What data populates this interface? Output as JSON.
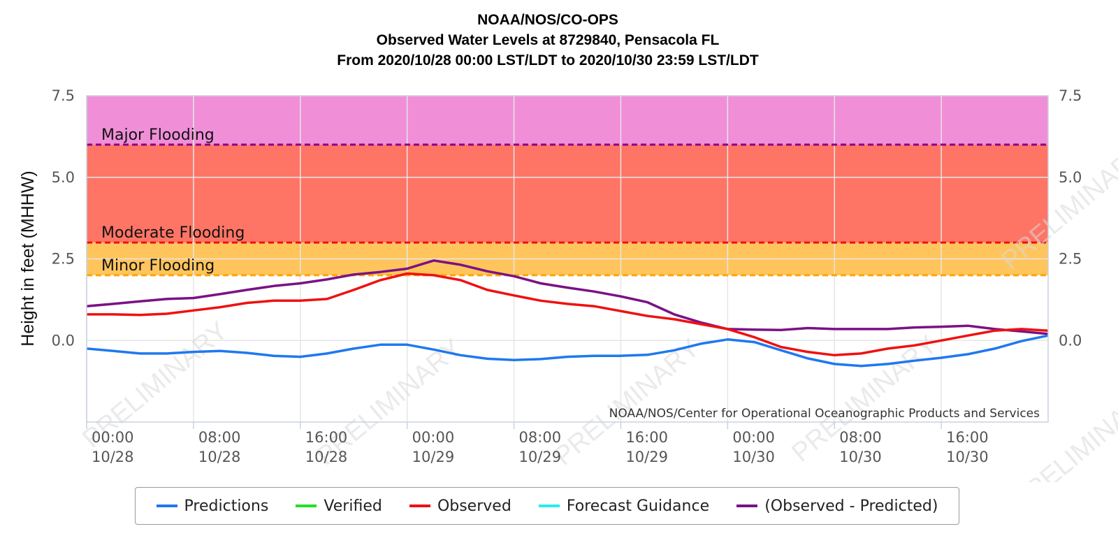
{
  "titles": [
    "NOAA/NOS/CO-OPS",
    "Observed Water Levels at 8729840, Pensacola FL",
    "From 2020/10/28 00:00 LST/LDT to 2020/10/30 23:59 LST/LDT"
  ],
  "credit": "NOAA/NOS/Center for Operational Oceanographic Products and Services",
  "watermark": "PRELIMINARY",
  "colors": {
    "predictions": "#1f78f0",
    "verified": "#22e022",
    "observed": "#f01010",
    "forecast": "#22eef0",
    "difference": "#7a1285",
    "major_band": "#f08fd8",
    "moderate_band": "#ff7565",
    "minor_band": "#ffc55c",
    "major_line": "#8b008b",
    "moderate_line": "#ee1111",
    "minor_line": "#ffa500"
  },
  "legend": [
    {
      "key": "predictions",
      "label": "Predictions"
    },
    {
      "key": "verified",
      "label": "Verified"
    },
    {
      "key": "observed",
      "label": "Observed"
    },
    {
      "key": "forecast",
      "label": "Forecast Guidance"
    },
    {
      "key": "difference",
      "label": "(Observed - Predicted)"
    }
  ],
  "chart_data": {
    "type": "line",
    "ylabel": "Height in feet (MHHW)",
    "y_ticks": [
      "7.5",
      "5.0",
      "2.5",
      "0.0"
    ],
    "y_tick_values": [
      7.5,
      5.0,
      2.5,
      0.0
    ],
    "ylim": [
      -2.5,
      7.5
    ],
    "x_hours_range": [
      0,
      72
    ],
    "x_ticks": [
      {
        "hour": 0,
        "time": "00:00",
        "date": "10/28"
      },
      {
        "hour": 8,
        "time": "08:00",
        "date": "10/28"
      },
      {
        "hour": 16,
        "time": "16:00",
        "date": "10/28"
      },
      {
        "hour": 24,
        "time": "00:00",
        "date": "10/29"
      },
      {
        "hour": 32,
        "time": "08:00",
        "date": "10/29"
      },
      {
        "hour": 40,
        "time": "16:00",
        "date": "10/29"
      },
      {
        "hour": 48,
        "time": "00:00",
        "date": "10/30"
      },
      {
        "hour": 56,
        "time": "08:00",
        "date": "10/30"
      },
      {
        "hour": 64,
        "time": "16:00",
        "date": "10/30"
      }
    ],
    "flood_levels": [
      {
        "name": "Major Flooding",
        "value": 6.0,
        "band_top": 7.5
      },
      {
        "name": "Moderate Flooding",
        "value": 3.0,
        "band_top": 6.0
      },
      {
        "name": "Minor Flooding",
        "value": 2.0,
        "band_top": 3.0
      }
    ],
    "series": [
      {
        "key": "predictions",
        "name": "Predictions",
        "points": [
          [
            0,
            -0.25
          ],
          [
            2,
            -0.32
          ],
          [
            4,
            -0.4
          ],
          [
            6,
            -0.4
          ],
          [
            8,
            -0.35
          ],
          [
            10,
            -0.32
          ],
          [
            12,
            -0.38
          ],
          [
            14,
            -0.47
          ],
          [
            16,
            -0.5
          ],
          [
            18,
            -0.4
          ],
          [
            20,
            -0.25
          ],
          [
            22,
            -0.13
          ],
          [
            24,
            -0.13
          ],
          [
            26,
            -0.28
          ],
          [
            28,
            -0.45
          ],
          [
            30,
            -0.56
          ],
          [
            32,
            -0.6
          ],
          [
            34,
            -0.57
          ],
          [
            36,
            -0.5
          ],
          [
            38,
            -0.47
          ],
          [
            40,
            -0.47
          ],
          [
            42,
            -0.44
          ],
          [
            44,
            -0.3
          ],
          [
            46,
            -0.1
          ],
          [
            48,
            0.03
          ],
          [
            50,
            -0.05
          ],
          [
            52,
            -0.3
          ],
          [
            54,
            -0.55
          ],
          [
            56,
            -0.72
          ],
          [
            58,
            -0.78
          ],
          [
            60,
            -0.72
          ],
          [
            62,
            -0.62
          ],
          [
            64,
            -0.53
          ],
          [
            66,
            -0.42
          ],
          [
            68,
            -0.25
          ],
          [
            70,
            -0.02
          ],
          [
            72,
            0.15
          ]
        ]
      },
      {
        "key": "observed",
        "name": "Observed",
        "points": [
          [
            0,
            0.8
          ],
          [
            2,
            0.8
          ],
          [
            4,
            0.78
          ],
          [
            6,
            0.82
          ],
          [
            8,
            0.92
          ],
          [
            10,
            1.02
          ],
          [
            12,
            1.15
          ],
          [
            14,
            1.22
          ],
          [
            16,
            1.22
          ],
          [
            18,
            1.27
          ],
          [
            20,
            1.55
          ],
          [
            22,
            1.85
          ],
          [
            24,
            2.05
          ],
          [
            26,
            2.0
          ],
          [
            28,
            1.85
          ],
          [
            30,
            1.55
          ],
          [
            32,
            1.38
          ],
          [
            34,
            1.22
          ],
          [
            36,
            1.12
          ],
          [
            38,
            1.05
          ],
          [
            40,
            0.9
          ],
          [
            42,
            0.75
          ],
          [
            44,
            0.65
          ],
          [
            46,
            0.5
          ],
          [
            48,
            0.35
          ],
          [
            50,
            0.1
          ],
          [
            52,
            -0.2
          ],
          [
            54,
            -0.35
          ],
          [
            56,
            -0.45
          ],
          [
            58,
            -0.4
          ],
          [
            60,
            -0.25
          ],
          [
            62,
            -0.15
          ],
          [
            64,
            0.0
          ],
          [
            66,
            0.15
          ],
          [
            68,
            0.3
          ],
          [
            70,
            0.35
          ],
          [
            72,
            0.3
          ]
        ]
      },
      {
        "key": "difference",
        "name": "(Observed - Predicted)",
        "points": [
          [
            0,
            1.05
          ],
          [
            2,
            1.12
          ],
          [
            4,
            1.2
          ],
          [
            6,
            1.27
          ],
          [
            8,
            1.3
          ],
          [
            10,
            1.42
          ],
          [
            12,
            1.55
          ],
          [
            14,
            1.67
          ],
          [
            16,
            1.75
          ],
          [
            18,
            1.87
          ],
          [
            20,
            2.02
          ],
          [
            22,
            2.1
          ],
          [
            24,
            2.2
          ],
          [
            26,
            2.45
          ],
          [
            28,
            2.32
          ],
          [
            30,
            2.12
          ],
          [
            32,
            1.97
          ],
          [
            34,
            1.75
          ],
          [
            36,
            1.62
          ],
          [
            38,
            1.5
          ],
          [
            40,
            1.35
          ],
          [
            42,
            1.17
          ],
          [
            44,
            0.8
          ],
          [
            46,
            0.55
          ],
          [
            48,
            0.35
          ],
          [
            50,
            0.33
          ],
          [
            52,
            0.32
          ],
          [
            54,
            0.38
          ],
          [
            56,
            0.35
          ],
          [
            58,
            0.35
          ],
          [
            60,
            0.35
          ],
          [
            62,
            0.4
          ],
          [
            64,
            0.42
          ],
          [
            66,
            0.45
          ],
          [
            68,
            0.35
          ],
          [
            70,
            0.28
          ],
          [
            72,
            0.2
          ]
        ]
      }
    ]
  }
}
